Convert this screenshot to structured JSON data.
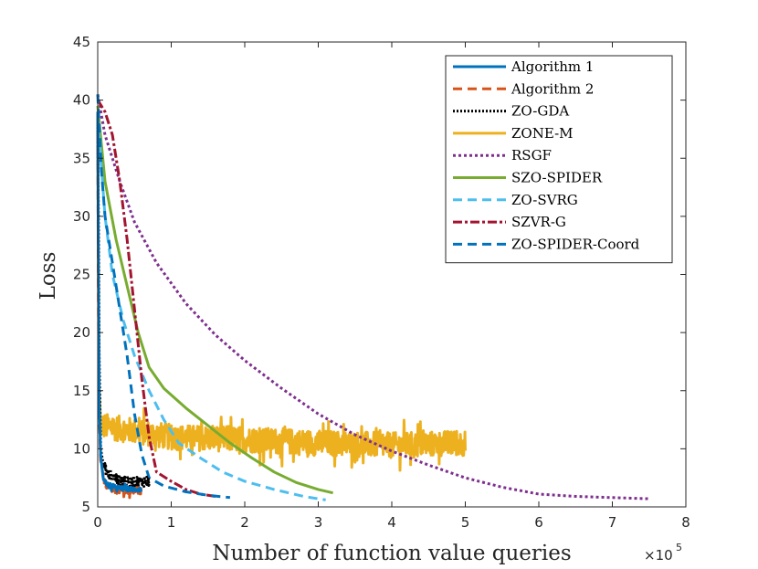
{
  "chart_data": {
    "type": "line",
    "title": "",
    "xlabel": "Number of function value queries",
    "ylabel": "Loss",
    "x_multiplier": "×10",
    "x_multiplier_exp": "5",
    "xlim": [
      0,
      8
    ],
    "ylim": [
      5,
      45
    ],
    "xticks": [
      "0",
      "1",
      "2",
      "3",
      "4",
      "5",
      "6",
      "7",
      "8"
    ],
    "yticks": [
      "5",
      "10",
      "15",
      "20",
      "25",
      "30",
      "35",
      "40",
      "45"
    ],
    "legend_position": "top-right",
    "series": [
      {
        "name": "ZONE-M",
        "color": "#EDB120",
        "dash": "solid",
        "width": 3,
        "points": [
          [
            0,
            39
          ],
          [
            0.01,
            25
          ],
          [
            0.02,
            15
          ],
          [
            0.04,
            12
          ],
          [
            1,
            11
          ],
          [
            2,
            10.8
          ],
          [
            3,
            10.5
          ],
          [
            4,
            10.3
          ],
          [
            5,
            10.5
          ]
        ],
        "noise": 2.2,
        "noise_start": 0.03
      },
      {
        "name": "RSGF",
        "color": "#7E2F8E",
        "dash": "3,3",
        "width": 3,
        "points": [
          [
            0,
            40.5
          ],
          [
            0.1,
            37
          ],
          [
            0.3,
            33
          ],
          [
            0.5,
            29.5
          ],
          [
            0.8,
            26
          ],
          [
            1.2,
            22.5
          ],
          [
            1.6,
            19.8
          ],
          [
            2.0,
            17.6
          ],
          [
            2.5,
            15.2
          ],
          [
            3.0,
            13
          ],
          [
            3.5,
            11.2
          ],
          [
            4.0,
            9.8
          ],
          [
            4.5,
            8.6
          ],
          [
            5.0,
            7.5
          ],
          [
            5.5,
            6.7
          ],
          [
            6.0,
            6.1
          ],
          [
            6.5,
            5.9
          ],
          [
            7.0,
            5.8
          ],
          [
            7.5,
            5.7
          ]
        ]
      },
      {
        "name": "SZO-SPIDER",
        "color": "#77AC30",
        "dash": "solid",
        "width": 3,
        "points": [
          [
            0,
            39.5
          ],
          [
            0.1,
            33
          ],
          [
            0.25,
            28
          ],
          [
            0.4,
            24
          ],
          [
            0.55,
            20
          ],
          [
            0.7,
            17
          ],
          [
            0.9,
            15.2
          ],
          [
            1.2,
            13.5
          ],
          [
            1.5,
            12
          ],
          [
            1.8,
            10.5
          ],
          [
            2.1,
            9.2
          ],
          [
            2.4,
            8
          ],
          [
            2.7,
            7.1
          ],
          [
            3.0,
            6.5
          ],
          [
            3.2,
            6.2
          ]
        ]
      },
      {
        "name": "ZO-SVRG",
        "color": "#4DBEEE",
        "dash": "10,6",
        "width": 3,
        "points": [
          [
            0,
            38.5
          ],
          [
            0.1,
            30
          ],
          [
            0.2,
            25
          ],
          [
            0.35,
            21
          ],
          [
            0.5,
            18
          ],
          [
            0.7,
            15
          ],
          [
            0.9,
            12.5
          ],
          [
            1.1,
            10.5
          ],
          [
            1.4,
            9.2
          ],
          [
            1.7,
            8
          ],
          [
            2.0,
            7.2
          ],
          [
            2.4,
            6.5
          ],
          [
            2.8,
            5.9
          ],
          [
            3.1,
            5.6
          ]
        ]
      },
      {
        "name": "SZVR-G",
        "color": "#A2142F",
        "dash": "10,3,3,3",
        "width": 3,
        "points": [
          [
            0,
            40
          ],
          [
            0.1,
            39
          ],
          [
            0.2,
            37
          ],
          [
            0.3,
            33
          ],
          [
            0.4,
            28
          ],
          [
            0.5,
            22
          ],
          [
            0.6,
            16
          ],
          [
            0.7,
            11
          ],
          [
            0.8,
            8
          ],
          [
            1.0,
            7.2
          ],
          [
            1.2,
            6.5
          ],
          [
            1.4,
            6.1
          ],
          [
            1.6,
            5.9
          ]
        ]
      },
      {
        "name": "ZO-SPIDER-Coord",
        "color": "#0072BD",
        "dash": "10,6",
        "width": 3,
        "points": [
          [
            0,
            40.5
          ],
          [
            0.05,
            34
          ],
          [
            0.1,
            30
          ],
          [
            0.2,
            26
          ],
          [
            0.3,
            22
          ],
          [
            0.4,
            18
          ],
          [
            0.5,
            13
          ],
          [
            0.6,
            9.5
          ],
          [
            0.7,
            7.5
          ],
          [
            0.9,
            6.8
          ],
          [
            1.2,
            6.3
          ],
          [
            1.5,
            6
          ],
          [
            1.8,
            5.8
          ]
        ]
      },
      {
        "name": "ZO-GDA",
        "color": "#000000",
        "dash": "2,2",
        "width": 3,
        "points": [
          [
            0,
            38
          ],
          [
            0.01,
            30
          ],
          [
            0.02,
            18
          ],
          [
            0.04,
            10
          ],
          [
            0.08,
            8.5
          ],
          [
            0.15,
            7.7
          ],
          [
            0.3,
            7.3
          ],
          [
            0.5,
            7.2
          ],
          [
            0.7,
            7.2
          ]
        ],
        "noise": 0.9,
        "noise_start": 0.08
      },
      {
        "name": "Algorithm 2",
        "color": "#D95319",
        "dash": "10,6",
        "width": 3,
        "points": [
          [
            0,
            38.5
          ],
          [
            0.01,
            22
          ],
          [
            0.02,
            13
          ],
          [
            0.04,
            9
          ],
          [
            0.08,
            7.2
          ],
          [
            0.15,
            6.6
          ],
          [
            0.3,
            6.4
          ],
          [
            0.5,
            6.4
          ],
          [
            0.6,
            6.4
          ]
        ],
        "noise": 0.6,
        "noise_start": 0.06
      },
      {
        "name": "Algorithm 1",
        "color": "#0072BD",
        "dash": "solid",
        "width": 3,
        "points": [
          [
            0,
            39
          ],
          [
            0.01,
            25
          ],
          [
            0.02,
            14
          ],
          [
            0.04,
            9.5
          ],
          [
            0.08,
            7.3
          ],
          [
            0.15,
            6.8
          ],
          [
            0.3,
            6.6
          ],
          [
            0.5,
            6.5
          ],
          [
            0.6,
            6.5
          ]
        ],
        "noise": 0.4,
        "noise_start": 0.06
      }
    ],
    "legend_order": [
      "Algorithm 1",
      "Algorithm 2",
      "ZO-GDA",
      "ZONE-M",
      "RSGF",
      "SZO-SPIDER",
      "ZO-SVRG",
      "SZVR-G",
      "ZO-SPIDER-Coord"
    ]
  }
}
